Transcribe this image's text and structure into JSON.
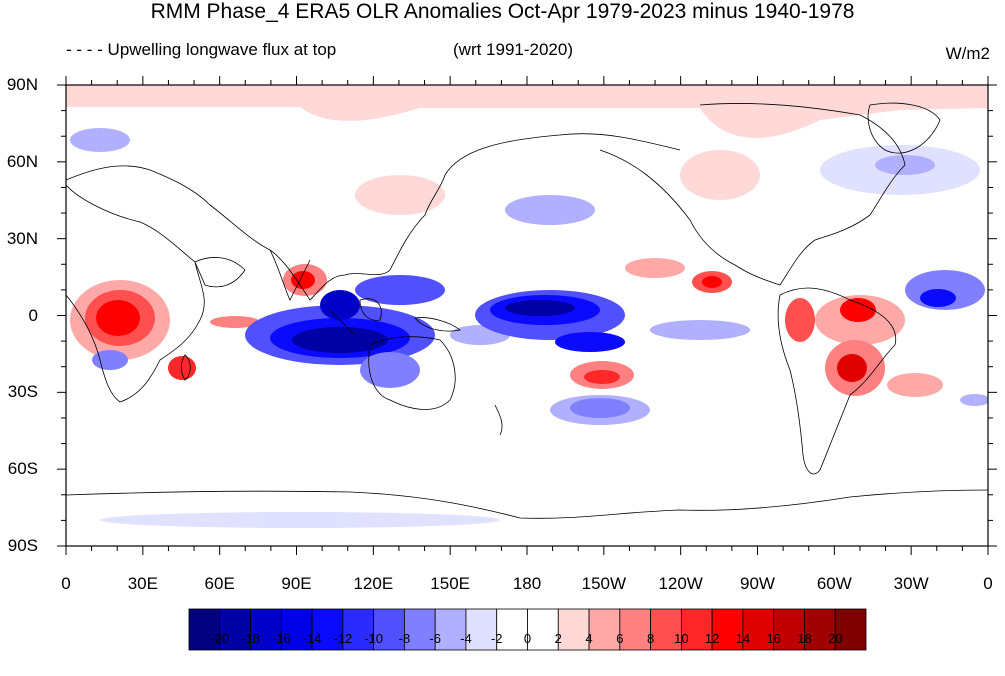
{
  "title": "RMM Phase_4 ERA5 OLR Anomalies Oct-Apr 1979-2023 minus 1940-1978",
  "subtitle_left": "- - - - Upwelling longwave flux at top",
  "subtitle_center": "(wrt 1991-2020)",
  "units": "W/m2",
  "lat_labels": [
    "90N",
    "60N",
    "30N",
    "0",
    "30S",
    "60S",
    "90S"
  ],
  "lon_labels": [
    "0",
    "30E",
    "60E",
    "90E",
    "120E",
    "150E",
    "180",
    "150W",
    "120W",
    "90W",
    "60W",
    "30W",
    "0"
  ],
  "colorbar": {
    "levels": [
      "-20",
      "-18",
      "-16",
      "-14",
      "-12",
      "-10",
      "-8",
      "-6",
      "-4",
      "-2",
      "0",
      "2",
      "4",
      "6",
      "8",
      "10",
      "12",
      "14",
      "16",
      "18",
      "20"
    ],
    "colors": [
      "#000080",
      "#0000a4",
      "#0000c8",
      "#0000e6",
      "#0a0aff",
      "#2b2bff",
      "#5050ff",
      "#8080ff",
      "#b0b0ff",
      "#e0e0ff",
      "#ffffff",
      "#ffffff",
      "#ffd8d8",
      "#ffa8a8",
      "#ff8080",
      "#ff5050",
      "#ff2828",
      "#ff0000",
      "#e00000",
      "#c00000",
      "#a00000",
      "#800000"
    ]
  },
  "chart_data": {
    "type": "heatmap",
    "title": "RMM Phase_4 ERA5 OLR Anomalies Oct-Apr 1979-2023 minus 1940-1978",
    "units": "W/m2",
    "lon_range": [
      0,
      360
    ],
    "lat_range": [
      -90,
      90
    ],
    "anomaly_features": [
      {
        "lon": 20,
        "lat": 0,
        "value": 16
      },
      {
        "lon": 45,
        "lat": -20,
        "value": 10
      },
      {
        "lon": 88,
        "lat": 14,
        "value": 10
      },
      {
        "lon": 105,
        "lat": -10,
        "value": -20
      },
      {
        "lon": 130,
        "lat": 8,
        "value": -10
      },
      {
        "lon": 185,
        "lat": 0,
        "value": -16
      },
      {
        "lon": 210,
        "lat": -10,
        "value": -12
      },
      {
        "lon": 215,
        "lat": -25,
        "value": 10
      },
      {
        "lon": 250,
        "lat": 12,
        "value": 10
      },
      {
        "lon": 300,
        "lat": -18,
        "value": 14
      },
      {
        "lon": 310,
        "lat": 2,
        "value": 12
      },
      {
        "lon": 335,
        "lat": 5,
        "value": -10
      },
      {
        "lon": 180,
        "lat": 85,
        "value": 3
      }
    ]
  }
}
